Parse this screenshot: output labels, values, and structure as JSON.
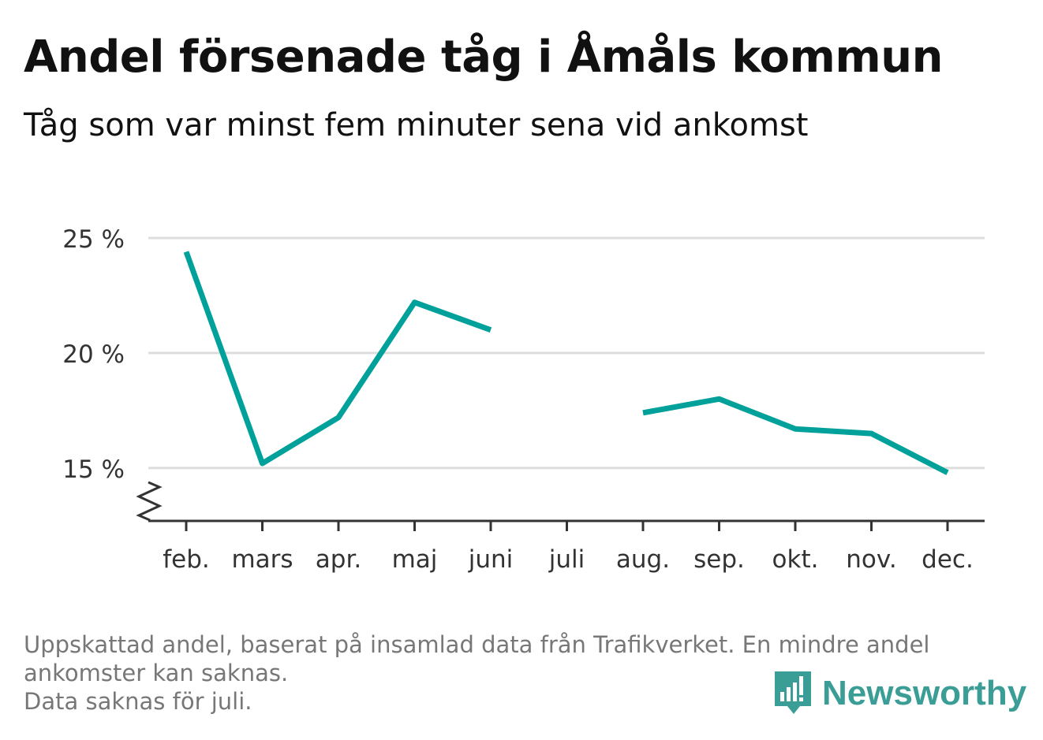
{
  "header": {
    "title": "Andel försenade tåg i Åmåls kommun",
    "subtitle": "Tåg som var minst fem minuter sena vid ankomst"
  },
  "footer": {
    "note_lines": [
      "Uppskattad andel, baserat på insamlad data från Trafikverket. En mindre andel",
      "ankomster kan saknas.",
      "Data saknas för juli."
    ],
    "brand": "Newsworthy"
  },
  "colors": {
    "line": "#00a19a",
    "grid": "#dddddd",
    "axis": "#333333",
    "brand": "#3a9e96"
  },
  "chart_data": {
    "type": "line",
    "categories": [
      "feb.",
      "mars",
      "apr.",
      "maj",
      "juni",
      "juli",
      "aug.",
      "sep.",
      "okt.",
      "nov.",
      "dec."
    ],
    "series": [
      {
        "values": [
          24.4,
          15.2,
          17.2,
          22.2,
          21.0,
          null,
          17.4,
          18.0,
          16.7,
          16.5,
          14.8
        ]
      }
    ],
    "yticks": [
      {
        "value": 15,
        "label": "15 %"
      },
      {
        "value": 20,
        "label": "20 %"
      },
      {
        "value": 25,
        "label": "25 %"
      }
    ],
    "ylim": [
      12.7,
      25
    ],
    "y_axis_break": true,
    "grid": true,
    "xlabel": "",
    "ylabel": ""
  }
}
